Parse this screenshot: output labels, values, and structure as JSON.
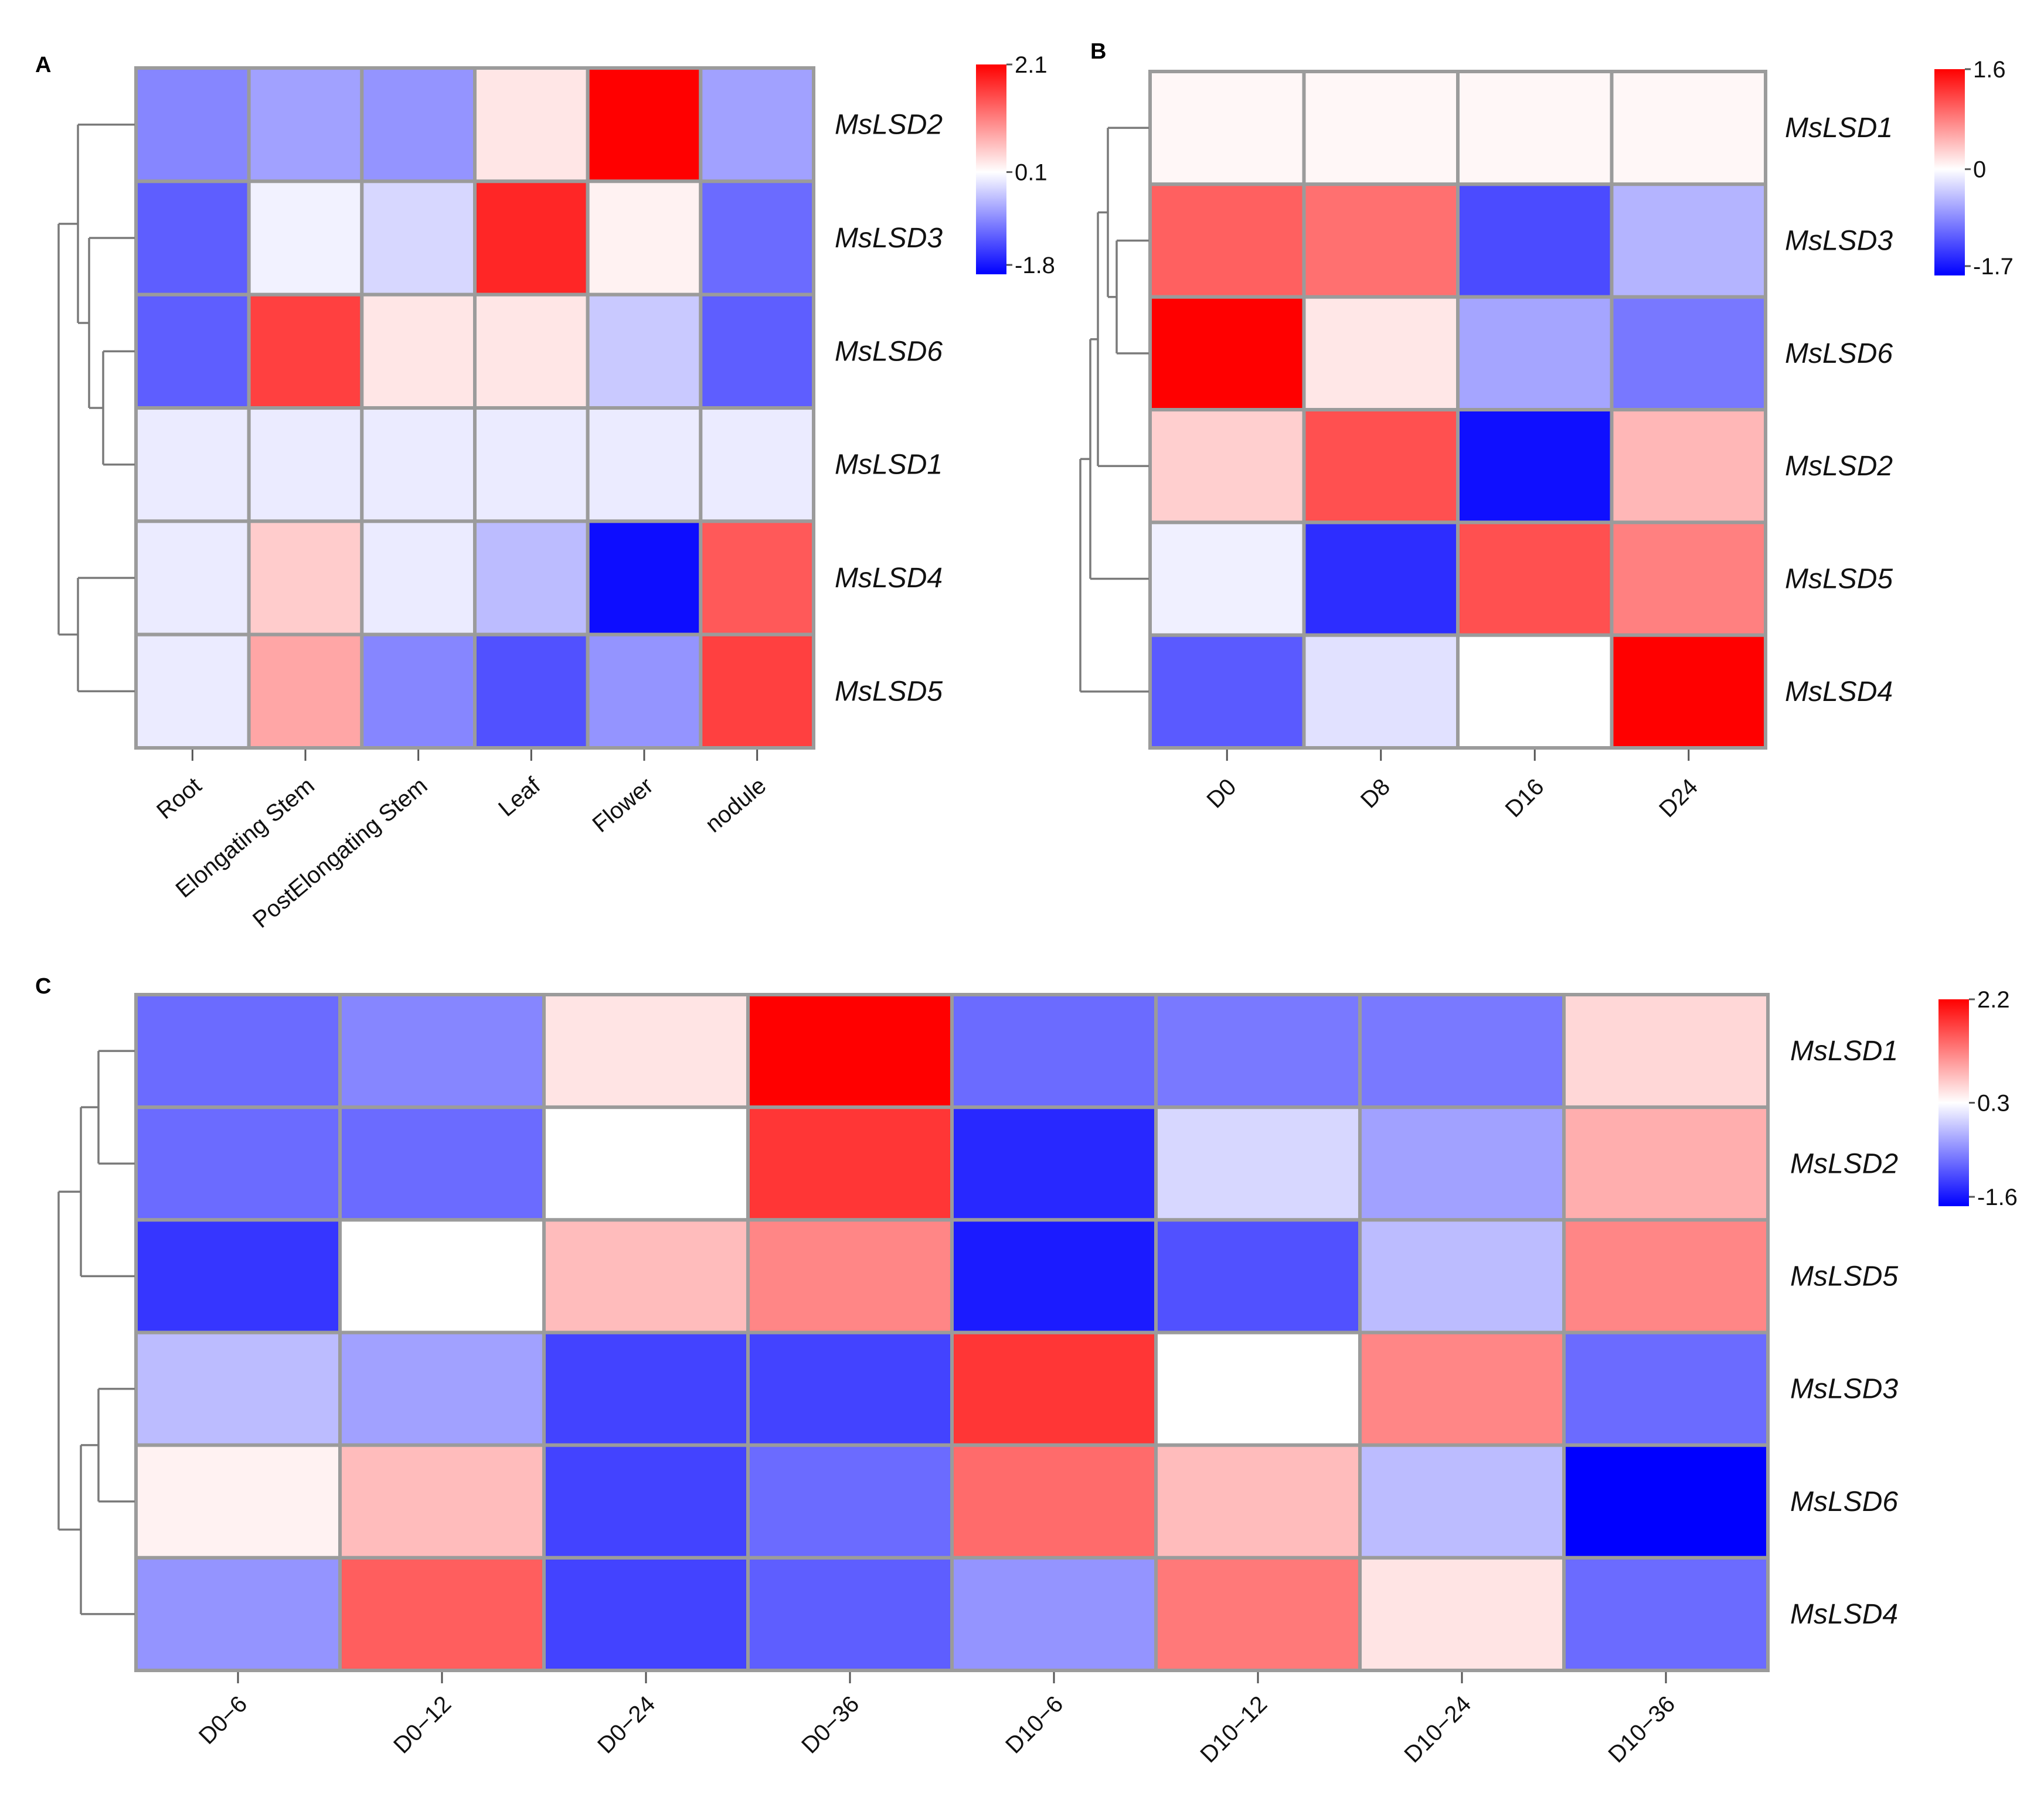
{
  "colors": {
    "low": "#0000ff",
    "mid": "#ffffff",
    "high": "#ff0000",
    "grid": "#9b9b9b"
  },
  "chart_data": [
    {
      "type": "heatmap",
      "panel": "A",
      "rows": [
        "MsLSD2",
        "MsLSD3",
        "MsLSD6",
        "MsLSD1",
        "MsLSD4",
        "MsLSD5"
      ],
      "columns": [
        "Root",
        "Elongating Stem",
        "PostElongating Stem",
        "Leaf",
        "Flower",
        "nodule"
      ],
      "values": [
        [
          -0.8,
          -0.6,
          -0.7,
          0.3,
          2.1,
          -0.6
        ],
        [
          -1.1,
          0.0,
          -0.2,
          1.8,
          0.2,
          -1.0
        ],
        [
          -1.1,
          1.6,
          0.3,
          0.3,
          -0.3,
          -1.1
        ],
        [
          -0.05,
          -0.05,
          -0.05,
          -0.05,
          -0.05,
          -0.05
        ],
        [
          -0.05,
          0.5,
          -0.05,
          -0.4,
          -1.7,
          1.4
        ],
        [
          -0.05,
          0.8,
          -0.8,
          -1.2,
          -0.7,
          1.6
        ]
      ],
      "colorbar": {
        "max": 2.1,
        "mid": 0.1,
        "min": -1.8,
        "max_label": "2.1",
        "mid_label": "0.1",
        "min_label": "-1.8"
      }
    },
    {
      "type": "heatmap",
      "panel": "B",
      "rows": [
        "MsLSD1",
        "MsLSD3",
        "MsLSD6",
        "MsLSD2",
        "MsLSD5",
        "MsLSD4"
      ],
      "columns": [
        "D0",
        "D8",
        "D16",
        "D24"
      ],
      "values": [
        [
          0.05,
          0.05,
          0.05,
          0.05
        ],
        [
          1.0,
          0.9,
          -1.2,
          -0.5
        ],
        [
          1.6,
          0.15,
          -0.6,
          -0.9
        ],
        [
          0.3,
          1.1,
          -1.6,
          0.45
        ],
        [
          -0.1,
          -1.4,
          1.1,
          0.8
        ],
        [
          -1.1,
          -0.2,
          0.0,
          1.6
        ]
      ],
      "colorbar": {
        "max": 1.6,
        "mid": 0,
        "min": -1.7,
        "max_label": "1.6",
        "mid_label": "0",
        "min_label": "-1.7"
      }
    },
    {
      "type": "heatmap",
      "panel": "C",
      "rows": [
        "MsLSD1",
        "MsLSD2",
        "MsLSD5",
        "MsLSD3",
        "MsLSD6",
        "MsLSD4"
      ],
      "columns": [
        "D0−6",
        "D0−12",
        "D0−24",
        "D0−36",
        "D10−6",
        "D10−12",
        "D10−24",
        "D10−36"
      ],
      "values": [
        [
          -0.8,
          -0.6,
          0.5,
          2.2,
          -0.8,
          -0.7,
          -0.7,
          0.6
        ],
        [
          -0.8,
          -0.8,
          0.3,
          1.8,
          -1.3,
          0.0,
          -0.4,
          0.9
        ],
        [
          -1.2,
          0.3,
          0.8,
          1.2,
          -1.4,
          -1.0,
          -0.2,
          1.2
        ],
        [
          -0.2,
          -0.4,
          -1.1,
          -1.1,
          1.8,
          0.3,
          1.2,
          -0.8
        ],
        [
          0.4,
          0.8,
          -1.1,
          -0.8,
          1.4,
          0.8,
          -0.2,
          -1.6
        ],
        [
          -0.5,
          1.5,
          -1.1,
          -0.9,
          -0.5,
          1.3,
          0.5,
          -0.8
        ]
      ],
      "colorbar": {
        "max": 2.2,
        "mid": 0.3,
        "min": -1.6,
        "max_label": "2.2",
        "mid_label": "0.3",
        "min_label": "-1.6"
      }
    }
  ]
}
